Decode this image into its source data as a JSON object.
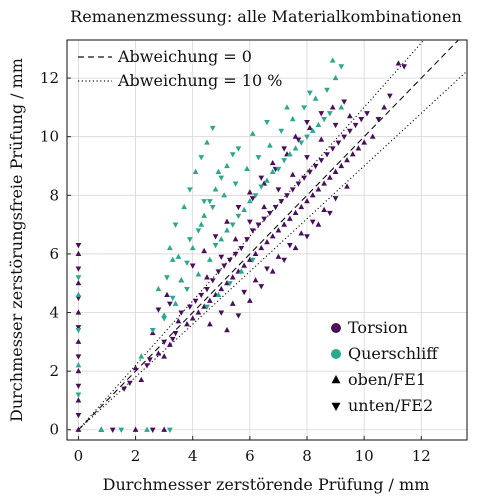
{
  "chart_data": {
    "type": "scatter",
    "title": "Remanenzmessung: alle Materialkombinationen",
    "xlabel": "Durchmesser zerstörende Prüfung / mm",
    "ylabel": "Durchmesser zerstörungsfreie Prüfung / mm",
    "xlim": [
      -0.4,
      13.6
    ],
    "ylim": [
      -0.35,
      13.3
    ],
    "xticks": [
      0,
      2,
      4,
      6,
      8,
      10,
      12
    ],
    "yticks": [
      0,
      2,
      4,
      6,
      8,
      10,
      12
    ],
    "grid": true,
    "reference_lines": [
      {
        "label": "Abweichung = 0",
        "style": "dashed",
        "slopes": [
          1.0
        ]
      },
      {
        "label": "Abweichung = 10 %",
        "style": "dotted",
        "slopes": [
          0.9,
          1.1
        ]
      }
    ],
    "legend_lines_position": "top-left",
    "legend_markers_position": "bottom-right",
    "legend_markers": [
      {
        "label": "Torsion",
        "marker": "circle",
        "color": "#4a0f5c"
      },
      {
        "label": "Querschliff",
        "marker": "circle",
        "color": "#2aa98c"
      },
      {
        "label": "oben/FE1",
        "marker": "triangle-up",
        "color": "#000000"
      },
      {
        "label": "unten/FE2",
        "marker": "triangle-down",
        "color": "#000000"
      }
    ],
    "series": [
      {
        "name": "Torsion",
        "color": "#4a0f5c",
        "points": [
          [
            0.0,
            0.0
          ],
          [
            0.0,
            0.5
          ],
          [
            0.0,
            1.0
          ],
          [
            0.0,
            1.5
          ],
          [
            0.0,
            2.0
          ],
          [
            0.0,
            2.5
          ],
          [
            0.0,
            3.0
          ],
          [
            0.0,
            3.5
          ],
          [
            0.0,
            4.0
          ],
          [
            0.0,
            4.5
          ],
          [
            0.0,
            5.0
          ],
          [
            0.0,
            5.5
          ],
          [
            0.0,
            6.0
          ],
          [
            0.0,
            6.3
          ],
          [
            0.8,
            0.0
          ],
          [
            1.2,
            0.0
          ],
          [
            2.0,
            0.0
          ],
          [
            2.6,
            0.0
          ],
          [
            3.0,
            0.0
          ],
          [
            1.6,
            1.4
          ],
          [
            2.0,
            2.1
          ],
          [
            2.4,
            2.2
          ],
          [
            2.8,
            2.6
          ],
          [
            3.0,
            3.0
          ],
          [
            3.2,
            2.9
          ],
          [
            3.4,
            3.3
          ],
          [
            3.5,
            3.7
          ],
          [
            3.6,
            4.0
          ],
          [
            3.8,
            3.6
          ],
          [
            3.9,
            4.2
          ],
          [
            4.0,
            3.8
          ],
          [
            4.1,
            4.4
          ],
          [
            4.2,
            4.0
          ],
          [
            4.3,
            4.6
          ],
          [
            4.4,
            4.2
          ],
          [
            4.5,
            4.8
          ],
          [
            4.6,
            4.4
          ],
          [
            4.7,
            5.1
          ],
          [
            4.8,
            4.6
          ],
          [
            4.9,
            5.4
          ],
          [
            5.0,
            4.8
          ],
          [
            5.1,
            5.6
          ],
          [
            5.2,
            5.0
          ],
          [
            5.3,
            5.8
          ],
          [
            5.4,
            5.2
          ],
          [
            5.5,
            6.0
          ],
          [
            5.6,
            5.4
          ],
          [
            5.7,
            6.2
          ],
          [
            5.8,
            5.6
          ],
          [
            5.9,
            6.5
          ],
          [
            6.0,
            5.8
          ],
          [
            6.1,
            6.8
          ],
          [
            6.2,
            6.0
          ],
          [
            6.3,
            7.0
          ],
          [
            6.4,
            6.2
          ],
          [
            6.5,
            7.2
          ],
          [
            6.6,
            6.4
          ],
          [
            6.7,
            7.4
          ],
          [
            6.8,
            6.6
          ],
          [
            6.9,
            7.6
          ],
          [
            7.0,
            6.8
          ],
          [
            7.1,
            7.8
          ],
          [
            7.2,
            7.0
          ],
          [
            7.3,
            8.0
          ],
          [
            7.4,
            7.2
          ],
          [
            7.5,
            8.2
          ],
          [
            7.6,
            7.4
          ],
          [
            7.7,
            8.4
          ],
          [
            7.8,
            7.6
          ],
          [
            7.9,
            8.6
          ],
          [
            8.0,
            7.8
          ],
          [
            8.1,
            8.8
          ],
          [
            8.2,
            8.0
          ],
          [
            8.3,
            9.0
          ],
          [
            8.4,
            8.2
          ],
          [
            8.5,
            9.2
          ],
          [
            8.6,
            8.4
          ],
          [
            8.7,
            9.4
          ],
          [
            8.8,
            8.6
          ],
          [
            8.9,
            9.6
          ],
          [
            9.0,
            8.8
          ],
          [
            9.1,
            9.8
          ],
          [
            9.2,
            9.0
          ],
          [
            9.3,
            10.0
          ],
          [
            9.4,
            9.2
          ],
          [
            9.5,
            10.2
          ],
          [
            9.6,
            9.4
          ],
          [
            9.7,
            10.4
          ],
          [
            9.8,
            9.6
          ],
          [
            9.9,
            10.6
          ],
          [
            10.0,
            9.8
          ],
          [
            10.1,
            10.8
          ],
          [
            10.3,
            10.0
          ],
          [
            10.5,
            10.6
          ],
          [
            10.7,
            11.0
          ],
          [
            10.9,
            11.4
          ],
          [
            11.2,
            12.5
          ],
          [
            11.4,
            12.4
          ],
          [
            4.6,
            3.6
          ],
          [
            5.0,
            4.0
          ],
          [
            5.4,
            4.3
          ],
          [
            5.8,
            4.7
          ],
          [
            6.2,
            5.1
          ],
          [
            6.6,
            5.5
          ],
          [
            7.0,
            5.9
          ],
          [
            7.4,
            6.3
          ],
          [
            7.8,
            6.7
          ],
          [
            8.2,
            7.1
          ],
          [
            8.6,
            7.5
          ],
          [
            9.0,
            7.9
          ],
          [
            9.4,
            8.3
          ],
          [
            3.2,
            4.3
          ],
          [
            3.6,
            5.1
          ],
          [
            4.0,
            5.6
          ],
          [
            4.4,
            6.1
          ],
          [
            4.8,
            6.6
          ],
          [
            5.2,
            7.1
          ],
          [
            5.6,
            7.6
          ],
          [
            6.0,
            8.1
          ],
          [
            6.4,
            8.6
          ],
          [
            6.8,
            9.1
          ],
          [
            7.2,
            9.6
          ],
          [
            7.6,
            10.0
          ],
          [
            8.0,
            10.5
          ],
          [
            5.2,
            3.4
          ],
          [
            5.6,
            3.9
          ],
          [
            6.0,
            4.4
          ],
          [
            6.4,
            4.9
          ],
          [
            6.8,
            5.4
          ],
          [
            7.2,
            5.8
          ],
          [
            7.6,
            6.2
          ],
          [
            8.0,
            6.6
          ],
          [
            8.4,
            7.0
          ],
          [
            8.8,
            7.4
          ],
          [
            2.6,
            3.3
          ],
          [
            2.8,
            4.1
          ],
          [
            3.1,
            4.6
          ],
          [
            6.1,
            7.9
          ],
          [
            6.5,
            8.4
          ],
          [
            6.9,
            8.9
          ],
          [
            7.3,
            9.4
          ],
          [
            7.7,
            9.9
          ],
          [
            8.1,
            10.3
          ],
          [
            8.5,
            10.8
          ],
          [
            8.9,
            11.0
          ],
          [
            9.3,
            11.2
          ],
          [
            4.5,
            5.2
          ],
          [
            5.0,
            5.9
          ],
          [
            5.5,
            6.5
          ],
          [
            6.0,
            7.1
          ],
          [
            6.5,
            7.6
          ],
          [
            7.0,
            8.2
          ],
          [
            7.5,
            8.7
          ],
          [
            8.0,
            9.3
          ],
          [
            8.5,
            9.9
          ],
          [
            9.0,
            10.4
          ],
          [
            9.5,
            10.7
          ],
          [
            1.8,
            1.6
          ],
          [
            2.2,
            1.7
          ],
          [
            2.5,
            2.4
          ],
          [
            3.0,
            2.5
          ],
          [
            3.3,
            3.1
          ]
        ]
      },
      {
        "name": "Querschliff",
        "color": "#2aa98c",
        "points": [
          [
            0.0,
            1.2
          ],
          [
            0.0,
            2.2
          ],
          [
            0.0,
            3.4
          ],
          [
            0.0,
            4.6
          ],
          [
            0.0,
            5.2
          ],
          [
            0.8,
            0.0
          ],
          [
            1.5,
            0.0
          ],
          [
            2.4,
            0.0
          ],
          [
            3.2,
            0.0
          ],
          [
            2.2,
            2.5
          ],
          [
            2.6,
            3.4
          ],
          [
            3.0,
            3.9
          ],
          [
            3.3,
            4.5
          ],
          [
            3.6,
            5.1
          ],
          [
            3.8,
            5.7
          ],
          [
            4.0,
            6.2
          ],
          [
            4.2,
            6.8
          ],
          [
            4.4,
            7.3
          ],
          [
            4.6,
            7.8
          ],
          [
            4.8,
            8.2
          ],
          [
            5.0,
            8.6
          ],
          [
            5.2,
            9.0
          ],
          [
            5.4,
            9.4
          ],
          [
            3.2,
            6.2
          ],
          [
            3.4,
            7.0
          ],
          [
            3.7,
            7.6
          ],
          [
            3.9,
            8.2
          ],
          [
            4.1,
            8.8
          ],
          [
            4.3,
            9.3
          ],
          [
            4.5,
            9.8
          ],
          [
            4.7,
            10.3
          ],
          [
            3.5,
            5.9
          ],
          [
            3.9,
            6.5
          ],
          [
            4.3,
            7.0
          ],
          [
            4.7,
            7.6
          ],
          [
            5.1,
            8.0
          ],
          [
            5.5,
            8.4
          ],
          [
            5.9,
            8.9
          ],
          [
            6.3,
            9.3
          ],
          [
            6.7,
            9.7
          ],
          [
            7.1,
            10.2
          ],
          [
            7.5,
            10.6
          ],
          [
            7.9,
            11.0
          ],
          [
            8.3,
            11.3
          ],
          [
            8.7,
            11.6
          ],
          [
            9.0,
            12.0
          ],
          [
            9.2,
            12.4
          ],
          [
            5.0,
            6.5
          ],
          [
            5.4,
            7.0
          ],
          [
            5.8,
            7.5
          ],
          [
            6.2,
            8.0
          ],
          [
            6.6,
            8.5
          ],
          [
            7.0,
            8.9
          ],
          [
            7.4,
            9.4
          ],
          [
            7.8,
            9.8
          ],
          [
            8.2,
            10.2
          ],
          [
            8.6,
            10.6
          ],
          [
            4.6,
            5.8
          ],
          [
            4.8,
            6.3
          ],
          [
            5.2,
            6.8
          ],
          [
            5.6,
            7.3
          ],
          [
            6.0,
            7.8
          ],
          [
            6.4,
            8.3
          ],
          [
            6.8,
            8.8
          ],
          [
            7.2,
            9.2
          ],
          [
            7.6,
            9.6
          ],
          [
            8.0,
            10.0
          ],
          [
            8.4,
            10.4
          ],
          [
            8.8,
            10.8
          ],
          [
            9.2,
            11.0
          ],
          [
            3.0,
            3.8
          ],
          [
            3.4,
            4.3
          ],
          [
            3.8,
            4.8
          ],
          [
            4.2,
            5.3
          ],
          [
            4.5,
            4.2
          ],
          [
            4.9,
            4.6
          ],
          [
            5.3,
            5.0
          ],
          [
            5.7,
            5.4
          ],
          [
            6.1,
            5.8
          ],
          [
            2.8,
            4.8
          ],
          [
            3.1,
            5.2
          ],
          [
            3.3,
            5.8
          ],
          [
            4.4,
            7.8
          ],
          [
            4.9,
            8.8
          ],
          [
            5.6,
            9.6
          ],
          [
            6.1,
            10.1
          ],
          [
            6.6,
            10.5
          ],
          [
            7.3,
            11.0
          ],
          [
            8.1,
            11.5
          ],
          [
            8.9,
            12.6
          ]
        ]
      }
    ]
  }
}
